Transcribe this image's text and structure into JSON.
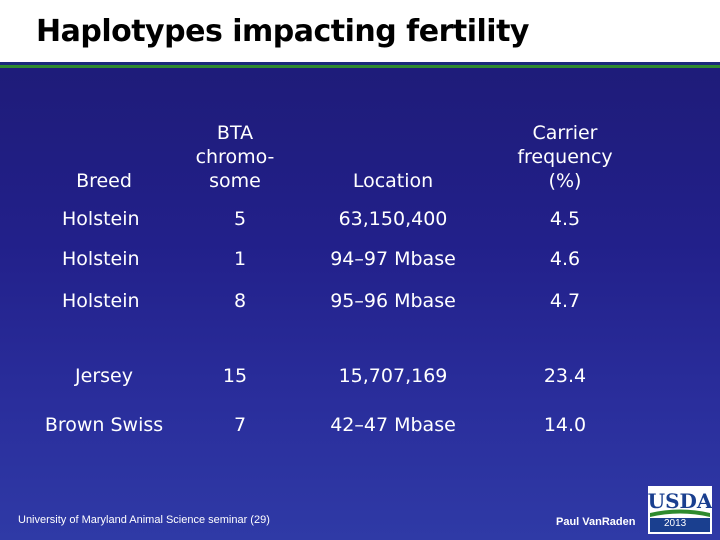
{
  "slide": {
    "title": "Haplotypes impacting fertility"
  },
  "table": {
    "headers": {
      "breed": "Breed",
      "chromosome_line1": "BTA",
      "chromosome_line2": "chromo-",
      "chromosome_line3": "some",
      "location": "Location",
      "freq_line1": "Carrier",
      "freq_line2": "frequency",
      "freq_line3": "(%)"
    },
    "rows": [
      {
        "breed": "Holstein",
        "chromosome": "5",
        "location": "63,150,400",
        "frequency": "4.5"
      },
      {
        "breed": "Holstein",
        "chromosome": "1",
        "location": "94–97 Mbase",
        "frequency": "4.6"
      },
      {
        "breed": "Holstein",
        "chromosome": "8",
        "location": "95–96 Mbase",
        "frequency": "4.7"
      },
      {
        "breed": "Jersey",
        "chromosome": "15",
        "location": "15,707,169",
        "frequency": "23.4"
      },
      {
        "breed": "Brown Swiss",
        "chromosome": "7",
        "location": "42–47 Mbase",
        "frequency": "14.0"
      }
    ]
  },
  "footer": {
    "seminar": "University of Maryland Animal Science seminar (29)",
    "author": "Paul VanRaden",
    "logo_text": "USDA",
    "year": "2013"
  },
  "colors": {
    "background_top": "#1d1a73",
    "background_bottom": "#2f3aa6",
    "rule_green": "#2e8b2e",
    "logo_blue": "#1a3f8f",
    "logo_green": "#2e8b2e"
  }
}
